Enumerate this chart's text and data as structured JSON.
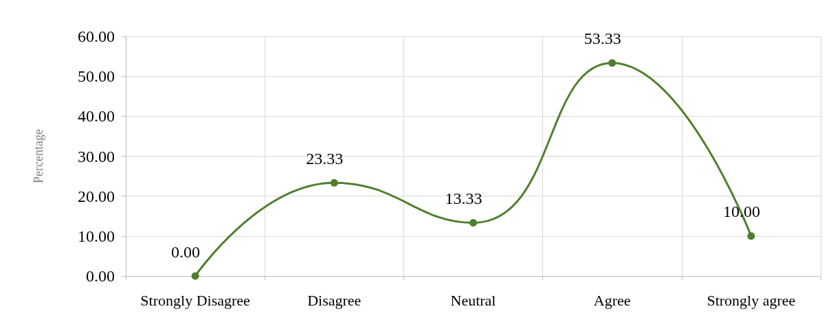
{
  "chart_data": {
    "type": "line",
    "ylabel": "Percentage",
    "categories": [
      "Strongly Disagree",
      "Disagree",
      "Neutral",
      "Agree",
      "Strongly agree"
    ],
    "series": [
      {
        "color": "#4f7f2e",
        "values": [
          0,
          23.33,
          13.33,
          53.33,
          10
        ],
        "value_labels": [
          "0.00",
          "23.33",
          "13.33",
          "53.33",
          "10.00"
        ]
      }
    ],
    "ylim": [
      0,
      60
    ],
    "yticks": [
      {
        "value": 0,
        "label": "0.00"
      },
      {
        "value": 10,
        "label": "10.00"
      },
      {
        "value": 20,
        "label": "20.00"
      },
      {
        "value": 30,
        "label": "30.00"
      },
      {
        "value": 40,
        "label": "40.00"
      },
      {
        "value": 50,
        "label": "50.00"
      },
      {
        "value": 60,
        "label": "60.00"
      }
    ],
    "grid": true,
    "marker": "circle"
  }
}
